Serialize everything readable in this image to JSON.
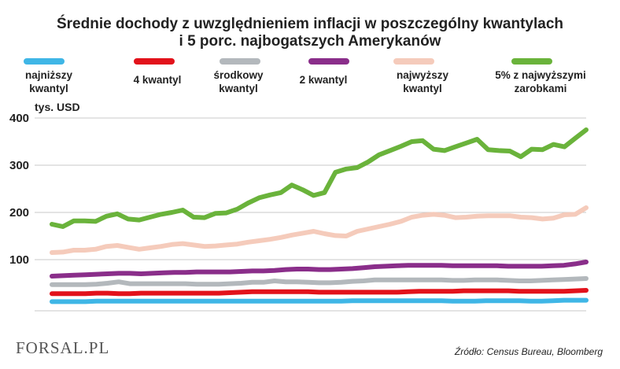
{
  "chart_data": {
    "type": "line",
    "title": "Średnie dochody z uwzględnieniem inflacji w poszczególny kwantylach i 5 porc. najbogatszych Amerykanów",
    "title_lines": [
      "Średnie dochody z uwzględnieniem inflacji w poszczególny kwantylach",
      "i 5 porc. najbogatszych Amerykanów"
    ],
    "ylabel": "tys. USD",
    "xlabel": "",
    "ylim": [
      0,
      400
    ],
    "yticks": [
      100,
      200,
      300,
      400
    ],
    "grid": true,
    "legend_position": "top",
    "source": "Źródło: Census Bureau, Bloomberg",
    "logo": "FORSAL.PL",
    "series": [
      {
        "name": "najniższy kwantyl",
        "legend_lines": [
          "najniższy",
          "kwantyl"
        ],
        "color": "#3fb6e6",
        "values": [
          11,
          11,
          11,
          11,
          12,
          12,
          12,
          12,
          12,
          12,
          12,
          12,
          12,
          12,
          12,
          12,
          12,
          12,
          12,
          12,
          12,
          12,
          12,
          12,
          12,
          12,
          12,
          13,
          13,
          13,
          13,
          13,
          13,
          13,
          13,
          13,
          12,
          12,
          12,
          13,
          13,
          13,
          13,
          12,
          12,
          13,
          14,
          14,
          14
        ]
      },
      {
        "name": "4 kwantyl",
        "legend_lines": [
          "4 kwantyl"
        ],
        "color": "#e2121b",
        "values": [
          28,
          28,
          28,
          28,
          29,
          29,
          28,
          28,
          29,
          29,
          29,
          29,
          29,
          29,
          29,
          29,
          30,
          31,
          32,
          32,
          32,
          32,
          32,
          32,
          31,
          31,
          31,
          31,
          31,
          31,
          31,
          31,
          32,
          33,
          33,
          33,
          33,
          34,
          34,
          34,
          34,
          34,
          33,
          33,
          33,
          33,
          33,
          34,
          35
        ]
      },
      {
        "name": "środkowy kwantyl",
        "legend_lines": [
          "środkowy",
          "kwantyl"
        ],
        "color": "#b3b8bc",
        "values": [
          47,
          47,
          47,
          47,
          48,
          50,
          53,
          49,
          49,
          49,
          49,
          49,
          49,
          48,
          48,
          48,
          49,
          50,
          52,
          52,
          55,
          53,
          53,
          52,
          51,
          51,
          52,
          54,
          55,
          57,
          57,
          57,
          57,
          57,
          57,
          57,
          56,
          56,
          57,
          57,
          57,
          56,
          55,
          55,
          56,
          57,
          58,
          59,
          60
        ]
      },
      {
        "name": "2 kwantyl",
        "legend_lines": [
          "2 kwantyl"
        ],
        "color": "#8a2e8a",
        "values": [
          65,
          66,
          67,
          68,
          69,
          70,
          71,
          71,
          70,
          71,
          72,
          73,
          73,
          74,
          74,
          74,
          74,
          75,
          76,
          76,
          77,
          79,
          80,
          80,
          79,
          79,
          80,
          81,
          83,
          85,
          86,
          87,
          88,
          88,
          88,
          88,
          87,
          87,
          87,
          87,
          87,
          86,
          86,
          86,
          86,
          87,
          88,
          91,
          95
        ]
      },
      {
        "name": "najwyższy kwantyl",
        "legend_lines": [
          "najwyższy",
          "kwantyl"
        ],
        "color": "#f5cbbb",
        "values": [
          115,
          116,
          120,
          120,
          122,
          128,
          130,
          126,
          122,
          125,
          128,
          132,
          134,
          131,
          128,
          129,
          131,
          133,
          137,
          140,
          143,
          147,
          152,
          156,
          160,
          155,
          151,
          150,
          160,
          165,
          170,
          175,
          181,
          190,
          194,
          196,
          194,
          189,
          190,
          192,
          193,
          193,
          193,
          190,
          189,
          186,
          188,
          195,
          196,
          210
        ]
      },
      {
        "name": "5% z najwyższymi zarobkami",
        "legend_lines": [
          "5% z najwyższymi",
          "zarobkami"
        ],
        "color": "#6ab33b",
        "values": [
          175,
          170,
          182,
          182,
          181,
          192,
          197,
          186,
          184,
          190,
          196,
          200,
          205,
          190,
          189,
          198,
          199,
          207,
          220,
          231,
          237,
          242,
          258,
          248,
          236,
          242,
          285,
          292,
          295,
          307,
          322,
          331,
          340,
          350,
          352,
          334,
          331,
          339,
          347,
          355,
          333,
          331,
          330,
          318,
          334,
          333,
          344,
          339,
          357,
          375
        ]
      }
    ]
  }
}
